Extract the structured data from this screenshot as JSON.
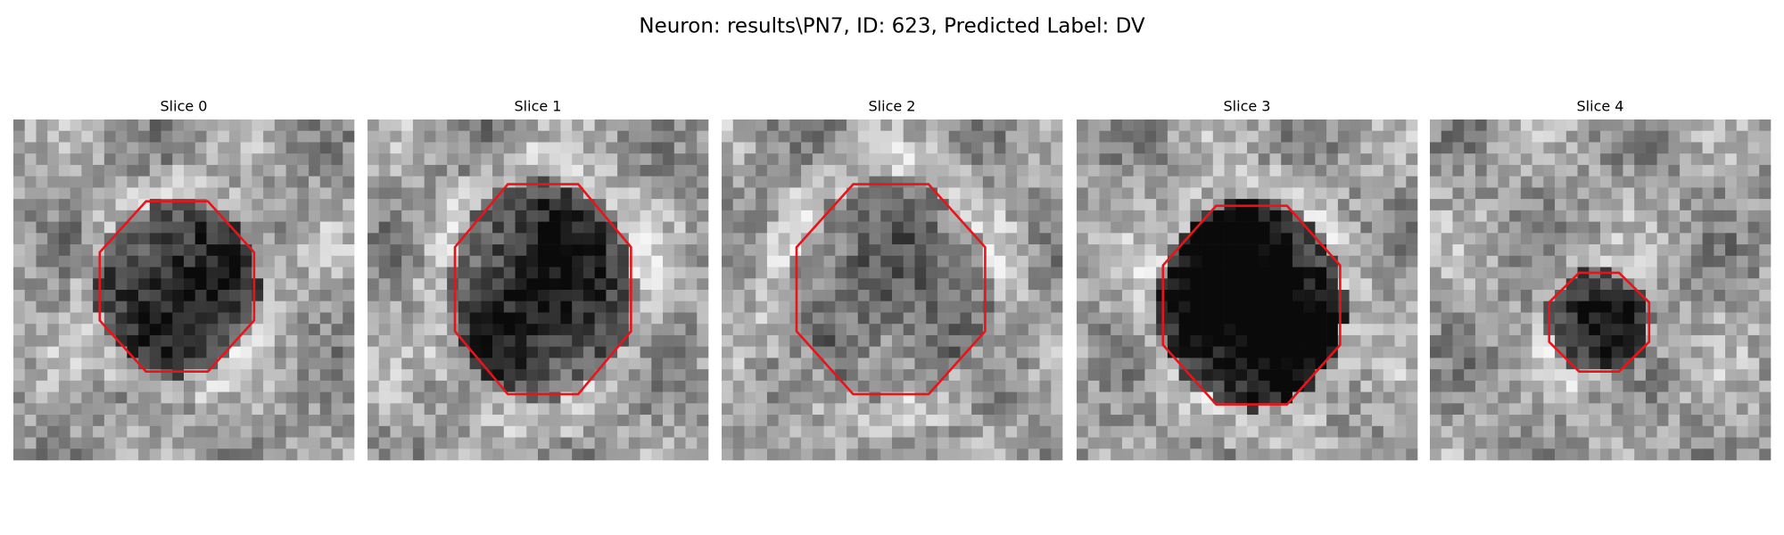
{
  "title": "Neuron: results\\PN7, ID: 623, Predicted Label: DV",
  "panels": [
    {
      "title": "Slice 0"
    },
    {
      "title": "Slice 1"
    },
    {
      "title": "Slice 2"
    },
    {
      "title": "Slice 3"
    },
    {
      "title": "Slice 4"
    }
  ]
}
